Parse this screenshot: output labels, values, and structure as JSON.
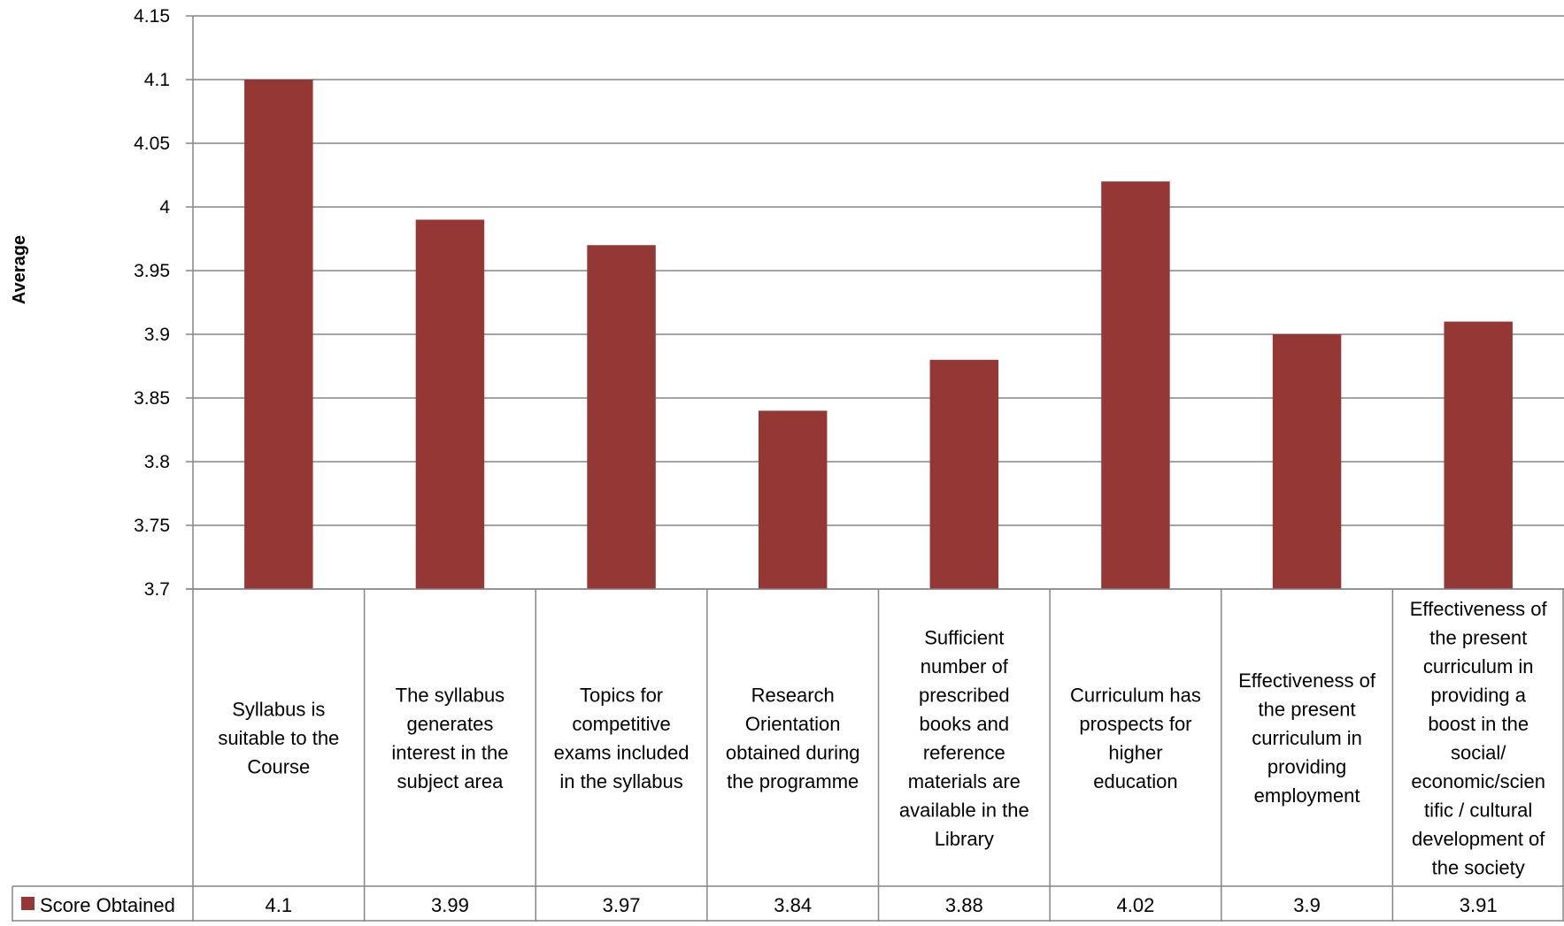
{
  "chart_data": {
    "type": "bar",
    "title": "",
    "ylabel": "Average",
    "xlabel": "",
    "ylim": [
      3.7,
      4.15
    ],
    "yticks": [
      "3.7",
      "3.75",
      "3.8",
      "3.85",
      "3.9",
      "3.95",
      "4",
      "4.05",
      "4.1",
      "4.15"
    ],
    "grid": true,
    "legend": "data-table-left",
    "data_table": true,
    "categories": [
      "Syllabus is suitable to the Course",
      "The syllabus generates interest in the subject area",
      "Topics for competitive exams included in the syllabus",
      "Research Orientation obtained during the programme",
      "Sufficient number of prescribed books and reference materials are available in the Library",
      "Curriculum has prospects for higher education",
      "Effectiveness of the present curriculum in providing employment",
      "Effectiveness of the present curriculum in providing a boost in the social/ economic/scientific / cultural development of the society"
    ],
    "category_label_lines": [
      [
        "Syllabus is",
        "suitable to the",
        "Course"
      ],
      [
        "The syllabus",
        "generates",
        "interest in the",
        "subject area"
      ],
      [
        "Topics for",
        "competitive",
        "exams included",
        "in the syllabus"
      ],
      [
        "Research",
        "Orientation",
        "obtained during",
        "the programme"
      ],
      [
        "Sufficient",
        "number of",
        "prescribed",
        "books and",
        "reference",
        "materials are",
        "available in the",
        "Library"
      ],
      [
        "Curriculum has",
        "prospects for",
        "higher",
        "education"
      ],
      [
        "Effectiveness of",
        "the present",
        "curriculum in",
        "providing",
        "employment"
      ],
      [
        "Effectiveness of",
        "the present",
        "curriculum in",
        "providing a",
        "boost in the",
        "social/",
        "economic/scien",
        "tific / cultural",
        "development of",
        "the society"
      ]
    ],
    "series": [
      {
        "name": "Score Obtained",
        "values": [
          4.1,
          3.99,
          3.97,
          3.84,
          3.88,
          4.02,
          3.9,
          3.91
        ],
        "value_labels": [
          "4.1",
          "3.99",
          "3.97",
          "3.84",
          "3.88",
          "4.02",
          "3.9",
          "3.91"
        ],
        "color": "#953735"
      }
    ],
    "gridline_color": "#868686",
    "axis_color": "#868686"
  }
}
